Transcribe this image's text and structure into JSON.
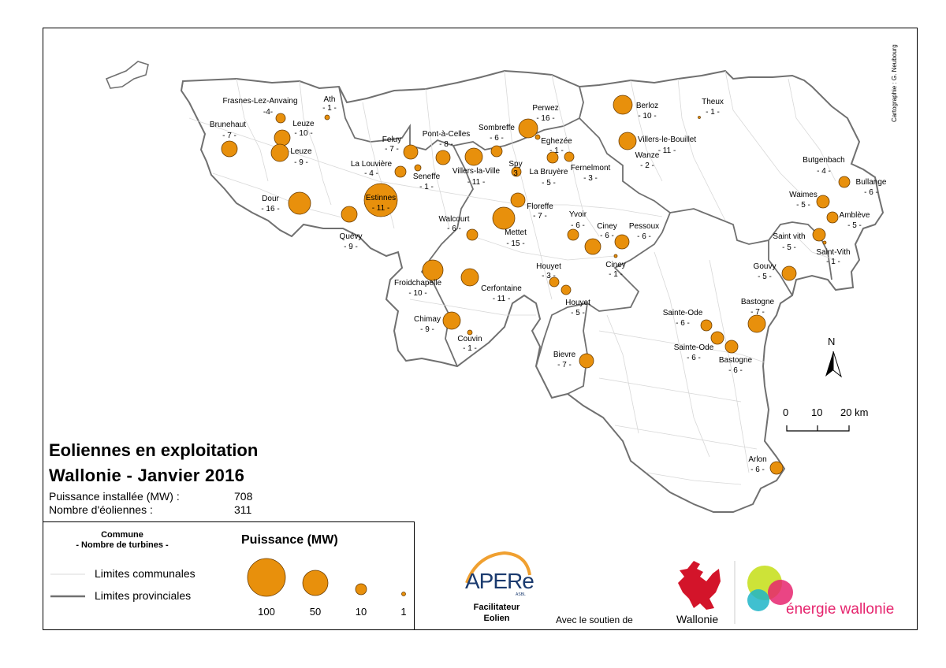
{
  "credit": "Cartographie : G. Neubourg",
  "title_line1": "Eoliennes en exploitation",
  "title_line2": "Wallonie - Janvier 2016",
  "stats": [
    {
      "label": "Puissance installée (MW) :",
      "value": "708"
    },
    {
      "label": "Nombre d'éoliennes  :",
      "value": "311"
    }
  ],
  "legend": {
    "commune_line1": "Commune",
    "commune_line2": "- Nombre de turbines -",
    "communal_limits": "Limites communales",
    "provincial_limits": "Limites provinciales",
    "power_title": "Puissance (MW)",
    "power_values": [
      "100",
      "50",
      "10",
      "1"
    ]
  },
  "north": "N",
  "scale": {
    "labels": [
      "0",
      "10",
      "20 km"
    ]
  },
  "logos": {
    "apere": "APERe",
    "apere_small": "ASBL",
    "facilitator_line1": "Facilitateur",
    "facilitator_line2": "Eolien",
    "support": "Avec le soutien de",
    "wallonie": "Wallonie",
    "energie": "énergie wallonie"
  },
  "colors": {
    "symbol": "#e8900c",
    "symbol_stroke": "#6b3d00",
    "province": "#707070",
    "commune": "#d8d8d8",
    "energie": "#e6256e"
  },
  "map_labels": [
    {
      "name": "Ath",
      "count": "- 1 -"
    },
    {
      "name": "Frasnes-Lez-Anvaing",
      "count": "-4-"
    },
    {
      "name": "Brunehaut",
      "count": "- 7 -"
    },
    {
      "name": "Leuze",
      "count": "- 10 -"
    },
    {
      "name": "Leuze",
      "count": "- 9 -"
    },
    {
      "name": "Dour",
      "count": "- 16 -"
    },
    {
      "name": "Quévy",
      "count": "- 9 -"
    },
    {
      "name": "Estinnes",
      "count": "- 11 -"
    },
    {
      "name": "La Louvière",
      "count": "- 4 -"
    },
    {
      "name": "Seneffe",
      "count": "- 1 -"
    },
    {
      "name": "Feluy",
      "count": "- 7 -"
    },
    {
      "name": "Pont-à-Celles",
      "count": "- 8 -"
    },
    {
      "name": "Villers-la-Ville",
      "count": "- 11 -"
    },
    {
      "name": "Sombreffe",
      "count": "- 6 -"
    },
    {
      "name": "Perwez",
      "count": "- 16 -"
    },
    {
      "name": "Eghezée",
      "count": "- 1 -"
    },
    {
      "name": "Spy",
      "count": "3"
    },
    {
      "name": "La Bruyère",
      "count": "- 5 -"
    },
    {
      "name": "Fernelmont",
      "count": "- 3 -"
    },
    {
      "name": "Floreffe",
      "count": "- 7 -"
    },
    {
      "name": "Walcourt",
      "count": "- 6 -"
    },
    {
      "name": "Mettet",
      "count": "- 15 -"
    },
    {
      "name": "Yvoir",
      "count": "- 6 -"
    },
    {
      "name": "Ciney",
      "count": "- 6 -"
    },
    {
      "name": "Pessoux",
      "count": "- 6 -"
    },
    {
      "name": "Ciney",
      "count": "- 1 -"
    },
    {
      "name": "Houyet",
      "count": "- 3 -"
    },
    {
      "name": "Houyet",
      "count": "- 5 -"
    },
    {
      "name": "Froidchapelle",
      "count": "- 10 -"
    },
    {
      "name": "Cerfontaine",
      "count": "- 11 -"
    },
    {
      "name": "Chimay",
      "count": "- 9 -"
    },
    {
      "name": "Couvin",
      "count": "- 1 -"
    },
    {
      "name": "Bievre",
      "count": "- 7 -"
    },
    {
      "name": "Berloz",
      "count": "- 10 -"
    },
    {
      "name": "Theux",
      "count": "- 1 -"
    },
    {
      "name": "Villers-le-Bouillet",
      "count": "- 11 -"
    },
    {
      "name": "Wanze",
      "count": "- 2 -"
    },
    {
      "name": "Butgenbach",
      "count": "- 4 -"
    },
    {
      "name": "Bullange",
      "count": "- 6 -"
    },
    {
      "name": "Waimes",
      "count": "- 5 -"
    },
    {
      "name": "Amblève",
      "count": "- 5 -"
    },
    {
      "name": "Saint vith",
      "count": "- 5 -"
    },
    {
      "name": "Saint-Vith",
      "count": "- 1 -"
    },
    {
      "name": "Gouvy",
      "count": "- 5 -"
    },
    {
      "name": "Bastogne",
      "count": "- 7 -"
    },
    {
      "name": "Sainte-Ode",
      "count": "- 6 -"
    },
    {
      "name": "Sainte-Ode",
      "count": "- 6 -"
    },
    {
      "name": "Bastogne",
      "count": "- 6 -"
    },
    {
      "name": "Arlon",
      "count": "- 6 -"
    }
  ]
}
